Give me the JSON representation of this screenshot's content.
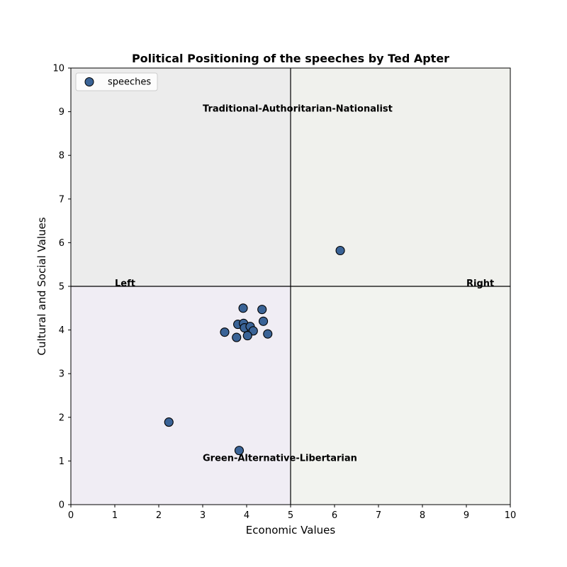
{
  "chart_data": {
    "type": "scatter",
    "title": "Political Positioning of the speeches by Ted Apter",
    "xlabel": "Economic Values",
    "ylabel": "Cultural and Social Values",
    "xlim": [
      0,
      10
    ],
    "ylim": [
      0,
      10
    ],
    "xticks": [
      "0",
      "1",
      "2",
      "3",
      "4",
      "5",
      "6",
      "7",
      "8",
      "9",
      "10"
    ],
    "yticks": [
      "0",
      "1",
      "2",
      "3",
      "4",
      "5",
      "6",
      "7",
      "8",
      "9",
      "10"
    ],
    "grid": false,
    "legend": {
      "position": "top-left",
      "entries": [
        "speeches"
      ]
    },
    "series": [
      {
        "name": "speeches",
        "color": "#3a6396",
        "points": [
          {
            "x": 6.13,
            "y": 5.82
          },
          {
            "x": 3.92,
            "y": 4.5
          },
          {
            "x": 4.35,
            "y": 4.47
          },
          {
            "x": 4.38,
            "y": 4.2
          },
          {
            "x": 3.8,
            "y": 4.13
          },
          {
            "x": 3.93,
            "y": 4.15
          },
          {
            "x": 3.95,
            "y": 4.05
          },
          {
            "x": 4.08,
            "y": 4.08
          },
          {
            "x": 4.15,
            "y": 3.98
          },
          {
            "x": 3.5,
            "y": 3.95
          },
          {
            "x": 4.02,
            "y": 3.87
          },
          {
            "x": 4.48,
            "y": 3.91
          },
          {
            "x": 3.77,
            "y": 3.83
          },
          {
            "x": 2.23,
            "y": 1.89
          },
          {
            "x": 3.83,
            "y": 1.24
          }
        ]
      }
    ],
    "quadrants": [
      {
        "name": "top-left",
        "x0": 0,
        "x1": 5,
        "y0": 5,
        "y1": 10,
        "color": "#ececec"
      },
      {
        "name": "top-right",
        "x0": 5,
        "x1": 10,
        "y0": 5,
        "y1": 10,
        "color": "#f0f1ed"
      },
      {
        "name": "bottom-left",
        "x0": 0,
        "x1": 5,
        "y0": 0,
        "y1": 5,
        "color": "#f0edf4"
      },
      {
        "name": "bottom-right",
        "x0": 5,
        "x1": 10,
        "y0": 0,
        "y1": 5,
        "color": "#f2f3ef"
      }
    ],
    "divider_lines": {
      "x": 5,
      "y": 5
    },
    "annotations": [
      {
        "text": "Traditional-Authoritarian-Nationalist",
        "x": 3.0,
        "y": 9.0
      },
      {
        "text": "Green-Alternative-Libertarian",
        "x": 3.0,
        "y": 1.0
      },
      {
        "text": "Left",
        "x": 1.0,
        "y": 5.0
      },
      {
        "text": "Right",
        "x": 9.0,
        "y": 5.0
      }
    ]
  }
}
